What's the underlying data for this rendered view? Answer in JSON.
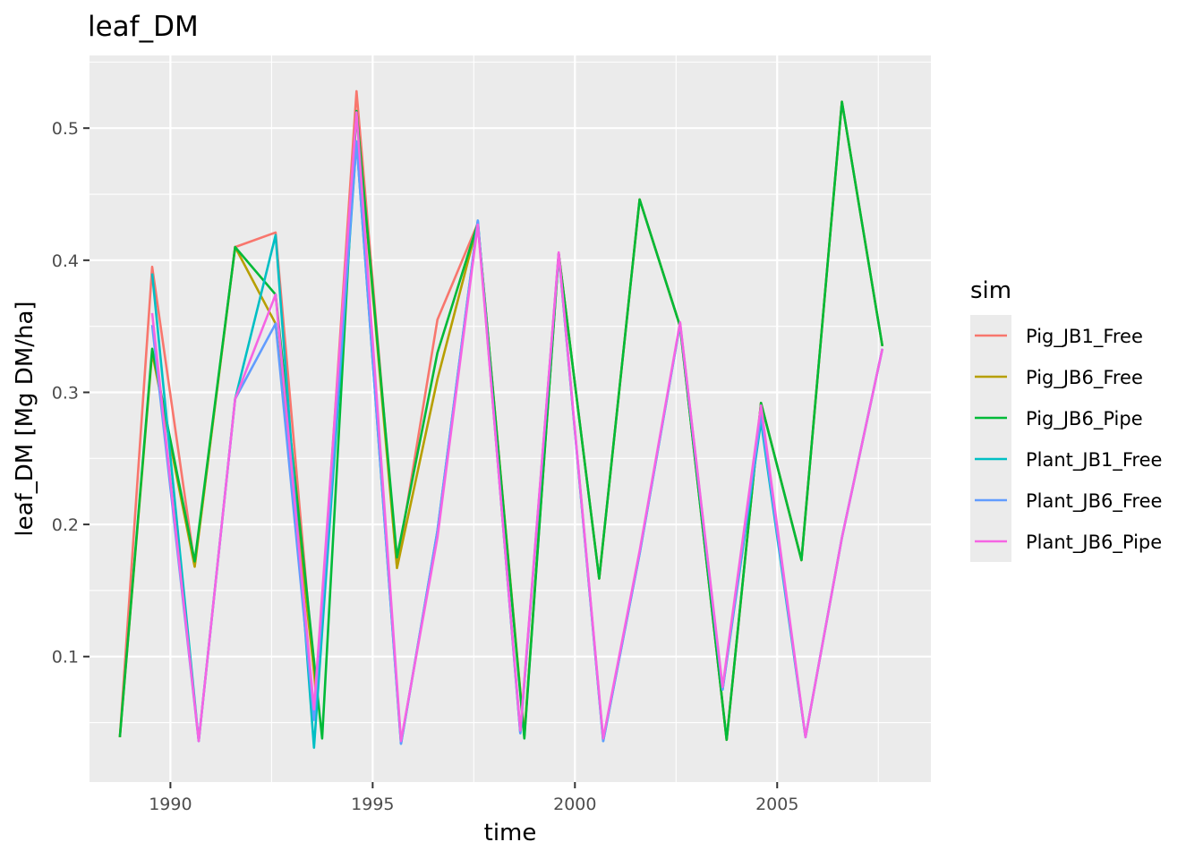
{
  "chart_data": {
    "type": "line",
    "title": "leaf_DM",
    "xlabel": "time",
    "ylabel": "leaf_DM [Mg DM/ha]",
    "xlim": [
      1988,
      2008.8
    ],
    "ylim": [
      0.005,
      0.555
    ],
    "x_ticks": [
      1990,
      1995,
      2000,
      2005
    ],
    "y_ticks": [
      0.1,
      0.2,
      0.3,
      0.4,
      0.5
    ],
    "x_tick_labels": [
      "1990",
      "1995",
      "2000",
      "2005"
    ],
    "y_tick_labels": [
      "0.1",
      "0.2",
      "0.3",
      "0.4",
      "0.5"
    ],
    "grid": true,
    "legend": {
      "title": "sim",
      "position": "right"
    },
    "series": [
      {
        "name": "Pig_JB1_Free",
        "color": "#F8766D",
        "points": [
          [
            1988.75,
            0.039
          ],
          [
            1989.55,
            0.395
          ],
          [
            1990.6,
            0.169
          ],
          [
            1991.6,
            0.41
          ],
          [
            1992.6,
            0.421
          ],
          [
            1993.6,
            0.07
          ],
          [
            1994.6,
            0.528
          ],
          [
            1995.6,
            0.168
          ],
          [
            1996.6,
            0.355
          ],
          [
            1997.6,
            0.428
          ],
          [
            1998.75,
            0.04
          ],
          [
            1999.6,
            0.405
          ],
          [
            2000.6,
            0.159
          ],
          [
            2001.6,
            0.446
          ],
          [
            2002.6,
            0.35
          ],
          [
            2003.75,
            0.037
          ],
          [
            2004.6,
            0.292
          ],
          [
            2005.6,
            0.173
          ],
          [
            2006.6,
            0.52
          ],
          [
            2007.6,
            0.335
          ]
        ]
      },
      {
        "name": "Pig_JB6_Free",
        "color": "#B79F00",
        "points": [
          [
            1988.75,
            0.039
          ],
          [
            1989.55,
            0.33
          ],
          [
            1990.6,
            0.168
          ],
          [
            1991.6,
            0.41
          ],
          [
            1992.6,
            0.352
          ],
          [
            1993.6,
            0.075
          ],
          [
            1994.6,
            0.513
          ],
          [
            1995.6,
            0.167
          ],
          [
            1996.6,
            0.31
          ],
          [
            1997.6,
            0.428
          ],
          [
            1998.75,
            0.04
          ],
          [
            1999.6,
            0.405
          ],
          [
            2000.6,
            0.159
          ],
          [
            2001.6,
            0.446
          ],
          [
            2002.6,
            0.35
          ],
          [
            2003.75,
            0.037
          ],
          [
            2004.6,
            0.292
          ],
          [
            2005.6,
            0.173
          ],
          [
            2006.6,
            0.52
          ],
          [
            2007.6,
            0.335
          ]
        ]
      },
      {
        "name": "Pig_JB6_Pipe",
        "color": "#00BA38",
        "points": [
          [
            1988.75,
            0.039
          ],
          [
            1989.55,
            0.333
          ],
          [
            1990.6,
            0.172
          ],
          [
            1991.6,
            0.41
          ],
          [
            1992.6,
            0.374
          ],
          [
            1993.75,
            0.038
          ],
          [
            1994.6,
            0.513
          ],
          [
            1995.6,
            0.175
          ],
          [
            1996.6,
            0.33
          ],
          [
            1997.6,
            0.428
          ],
          [
            1998.75,
            0.038
          ],
          [
            1999.6,
            0.405
          ],
          [
            2000.6,
            0.159
          ],
          [
            2001.6,
            0.446
          ],
          [
            2002.6,
            0.35
          ],
          [
            2003.75,
            0.037
          ],
          [
            2004.6,
            0.292
          ],
          [
            2005.6,
            0.173
          ],
          [
            2006.6,
            0.52
          ],
          [
            2007.6,
            0.335
          ]
        ]
      },
      {
        "name": "Plant_JB1_Free",
        "color": "#00BFC4",
        "points": [
          [
            1989.55,
            0.39
          ],
          [
            1990.7,
            0.036
          ],
          [
            1991.6,
            0.295
          ],
          [
            1992.6,
            0.419
          ],
          [
            1993.55,
            0.031
          ],
          [
            1994.6,
            0.49
          ],
          [
            1995.7,
            0.034
          ],
          [
            1996.6,
            0.195
          ],
          [
            1997.6,
            0.43
          ],
          [
            1998.65,
            0.042
          ],
          [
            1999.6,
            0.405
          ],
          [
            2000.7,
            0.036
          ],
          [
            2001.6,
            0.178
          ],
          [
            2002.6,
            0.352
          ],
          [
            2003.65,
            0.075
          ],
          [
            2004.6,
            0.278
          ],
          [
            2005.7,
            0.039
          ],
          [
            2006.6,
            0.19
          ],
          [
            2007.6,
            0.333
          ]
        ]
      },
      {
        "name": "Plant_JB6_Free",
        "color": "#619CFF",
        "points": [
          [
            1989.55,
            0.351
          ],
          [
            1990.7,
            0.036
          ],
          [
            1991.6,
            0.295
          ],
          [
            1992.6,
            0.352
          ],
          [
            1993.55,
            0.052
          ],
          [
            1994.6,
            0.49
          ],
          [
            1995.7,
            0.034
          ],
          [
            1996.6,
            0.195
          ],
          [
            1997.6,
            0.43
          ],
          [
            1998.65,
            0.042
          ],
          [
            1999.6,
            0.405
          ],
          [
            2000.7,
            0.036
          ],
          [
            2001.6,
            0.178
          ],
          [
            2002.6,
            0.352
          ],
          [
            2003.65,
            0.075
          ],
          [
            2004.6,
            0.283
          ],
          [
            2005.7,
            0.039
          ],
          [
            2006.6,
            0.19
          ],
          [
            2007.6,
            0.333
          ]
        ]
      },
      {
        "name": "Plant_JB6_Pipe",
        "color": "#F564E3",
        "points": [
          [
            1989.55,
            0.36
          ],
          [
            1990.7,
            0.036
          ],
          [
            1991.6,
            0.295
          ],
          [
            1992.6,
            0.374
          ],
          [
            1993.55,
            0.06
          ],
          [
            1994.6,
            0.512
          ],
          [
            1995.7,
            0.036
          ],
          [
            1996.6,
            0.19
          ],
          [
            1997.6,
            0.427
          ],
          [
            1998.65,
            0.044
          ],
          [
            1999.6,
            0.406
          ],
          [
            2000.7,
            0.038
          ],
          [
            2001.6,
            0.18
          ],
          [
            2002.6,
            0.353
          ],
          [
            2003.65,
            0.077
          ],
          [
            2004.6,
            0.29
          ],
          [
            2005.7,
            0.039
          ],
          [
            2006.6,
            0.19
          ],
          [
            2007.6,
            0.333
          ]
        ]
      }
    ]
  }
}
